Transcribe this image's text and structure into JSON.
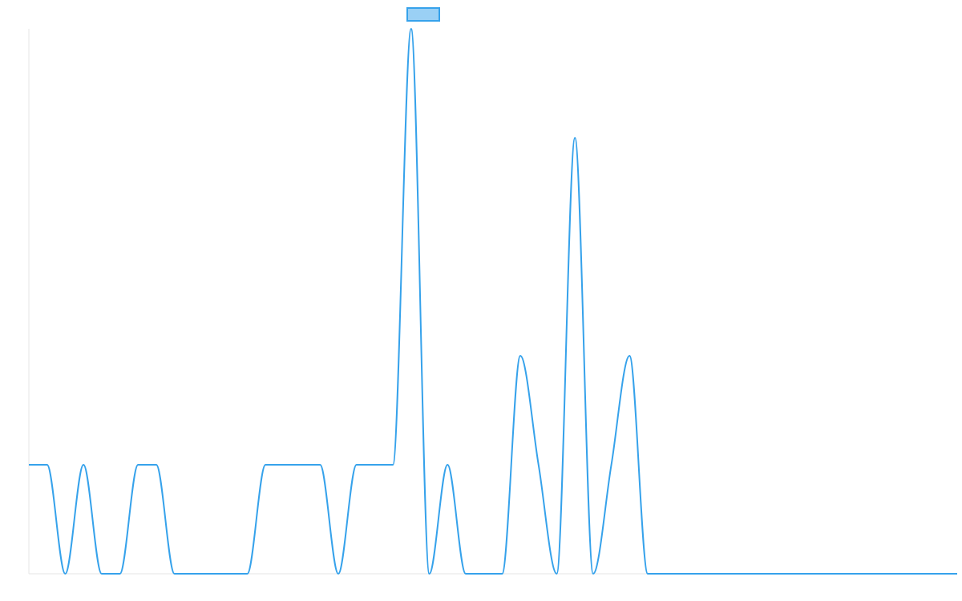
{
  "chart_data": {
    "type": "line",
    "title": "",
    "xlabel": "",
    "ylabel": "",
    "x": [
      0,
      1,
      2,
      3,
      4,
      5,
      6,
      7,
      8,
      9,
      10,
      11,
      12,
      13,
      14,
      15,
      16,
      17,
      18,
      19,
      20,
      21,
      22,
      23,
      24,
      25,
      26,
      27,
      28,
      29,
      30,
      31,
      32,
      33,
      34,
      35,
      36,
      37,
      38,
      39,
      40,
      41,
      42,
      43,
      44,
      45,
      46,
      47,
      48,
      49,
      50,
      51
    ],
    "ylim": [
      0,
      5
    ],
    "grid": false,
    "legend_position": "top",
    "series": [
      {
        "name": "",
        "color": "#36a2eb",
        "fill": "#9ad0f5",
        "values": [
          1,
          1,
          0,
          1,
          0,
          0,
          1,
          1,
          0,
          0,
          0,
          0,
          0,
          1,
          1,
          1,
          1,
          0,
          1,
          1,
          1,
          5,
          0,
          1,
          0,
          0,
          0,
          2,
          1,
          0,
          4,
          0,
          1,
          2,
          0,
          0,
          0,
          0,
          0,
          0,
          0,
          0,
          0,
          0,
          0,
          0,
          0,
          0,
          0,
          0,
          0,
          0
        ]
      }
    ]
  }
}
